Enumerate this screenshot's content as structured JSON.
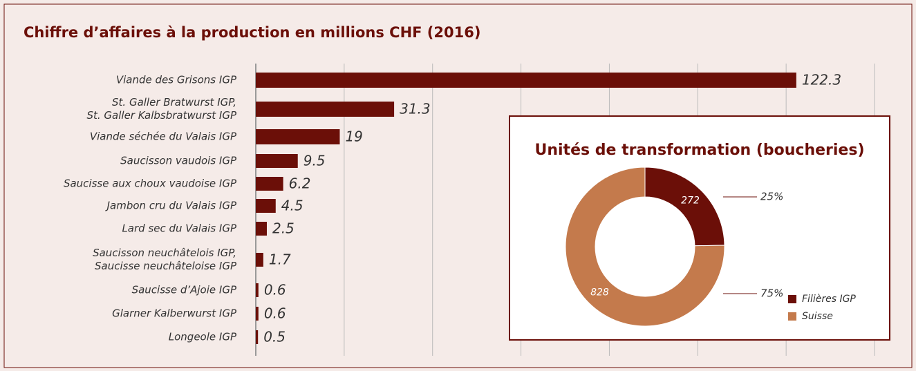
{
  "chart_data": [
    {
      "type": "hbar",
      "title": "Chiffre d’affaires à la production en millions CHF (2016)",
      "categories": [
        "Viande des Grisons IGP",
        "St. Galler Bratwurst IGP,\nSt. Galler Kalbsbratwurst IGP",
        "Viande séchée du Valais IGP",
        "Saucisson vaudois IGP",
        "Saucisse aux choux vaudoise IGP",
        "Jambon cru du Valais IGP",
        "Lard sec du Valais IGP",
        "Saucisson neuchâtelois IGP,\nSaucisse neuchâteloise IGP",
        "Saucisse d’Ajoie IGP",
        "Glarner Kalberwurst IGP",
        "Longeole IGP"
      ],
      "values": [
        122.3,
        31.3,
        19,
        9.5,
        6.2,
        4.5,
        2.5,
        1.7,
        0.6,
        0.6,
        0.5
      ],
      "color": "#6b0f08",
      "xlim": [
        0,
        140
      ],
      "xticks": [
        0,
        20,
        40,
        60,
        80,
        100,
        120,
        140
      ],
      "grid": true
    },
    {
      "type": "donut",
      "title": "Unités de transformation (boucheries)",
      "categories": [
        "Filières IGP",
        "Suisse"
      ],
      "values": [
        272,
        828
      ],
      "percent_labels": [
        "25%",
        "75%"
      ],
      "colors": [
        "#6b0f08",
        "#c47a4c"
      ]
    }
  ]
}
